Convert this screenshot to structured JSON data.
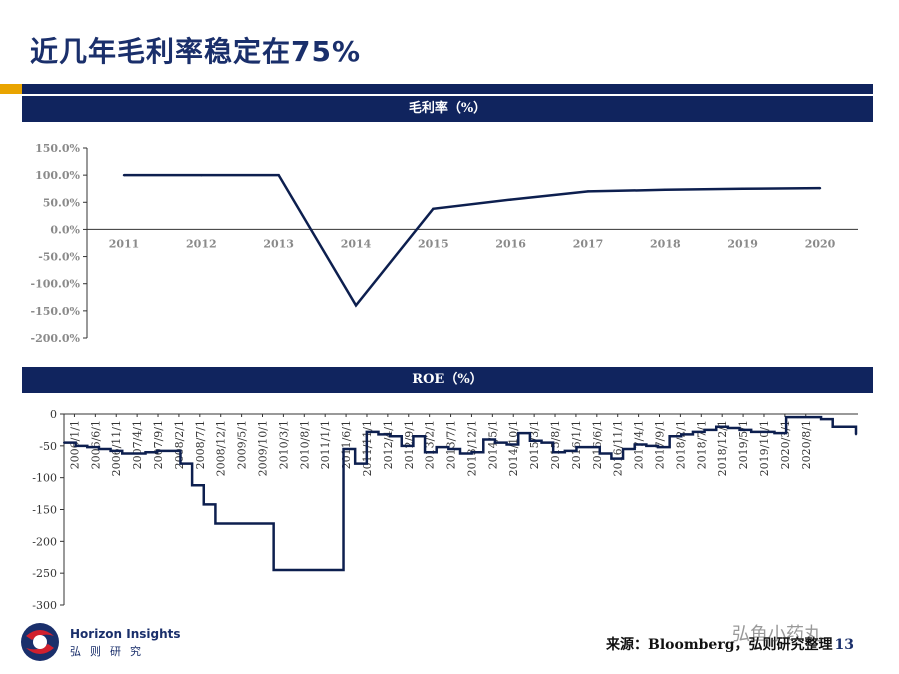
{
  "header": {
    "title": "近几年毛利率稳定在75%"
  },
  "colors": {
    "navy": "#10245e",
    "gold": "#e9a400",
    "line": "#0d1f4f"
  },
  "chart_data": [
    {
      "type": "line",
      "title": "毛利率（%）",
      "categories": [
        "2011",
        "2012",
        "2013",
        "2014",
        "2015",
        "2016",
        "2017",
        "2018",
        "2019",
        "2020"
      ],
      "values": [
        100,
        100,
        100,
        -140,
        38,
        55,
        70,
        73,
        75,
        76
      ],
      "ylim": [
        -200,
        150
      ],
      "yticks": [
        150,
        100,
        50,
        0,
        -50,
        -100,
        -150,
        -200
      ],
      "ytick_labels": [
        "150.0%",
        "100.0%",
        "50.0%",
        "0.0%",
        "-50.0%",
        "-100.0%",
        "-150.0%",
        "-200.0%"
      ],
      "grid": false,
      "legend": "none"
    },
    {
      "type": "line",
      "title": "ROE（%）",
      "ylim": [
        -300,
        0
      ],
      "yticks": [
        0,
        -50,
        -100,
        -150,
        -200,
        -250,
        -300
      ],
      "ytick_labels": [
        "0",
        "-50",
        "-100",
        "-150",
        "-200",
        "-250",
        "-300"
      ],
      "x_tick_labels": [
        "2006/1/1",
        "2006/6/1",
        "2006/11/1",
        "2007/4/1",
        "2007/9/1",
        "2008/2/1",
        "2008/7/1",
        "2008/12/1",
        "2009/5/1",
        "2009/10/1",
        "2010/3/1",
        "2010/8/1",
        "2011/1/1",
        "2011/6/1",
        "2011/11/1",
        "2012/4/1",
        "2012/9/1",
        "2013/2/1",
        "2013/7/1",
        "2013/12/1",
        "2014/5/1",
        "2014/10/1",
        "2015/3/1",
        "2015/8/1",
        "2016/1/1",
        "2016/6/1",
        "2016/11/1",
        "2017/4/1",
        "2017/9/1",
        "2018/2/1",
        "2018/7/1",
        "2018/12/1",
        "2019/5/1",
        "2019/10/1",
        "2020/3/1",
        "2020/8/1"
      ],
      "x_labeled_start": 0,
      "x_labeled_end": 35,
      "x_total_periods": 38,
      "values": [
        -45,
        -50,
        -52,
        -55,
        -58,
        -62,
        -62,
        -60,
        -58,
        -58,
        -78,
        -112,
        -142,
        -172,
        -172,
        -172,
        -172,
        -172,
        -245,
        -245,
        -245,
        -245,
        -245,
        -245,
        -55,
        -78,
        -28,
        -32,
        -35,
        -50,
        -35,
        -60,
        -52,
        -55,
        -62,
        -60,
        -40,
        -45,
        -48,
        -30,
        -42,
        -45,
        -60,
        -58,
        -52,
        -52,
        -62,
        -70,
        -55,
        -48,
        -50,
        -52,
        -35,
        -32,
        -28,
        -25,
        -20,
        -22,
        -25,
        -28,
        -28,
        -30,
        -5,
        -5,
        -5,
        -8,
        -20,
        -20,
        -32
      ],
      "grid": false,
      "legend": "none"
    }
  ],
  "footer": {
    "source": "来源：Bloomberg，弘则研究整理",
    "page": "13",
    "watermark": "弘鱼小药丸",
    "logo_en": "Horizon Insights",
    "logo_cn": "弘则研究"
  }
}
